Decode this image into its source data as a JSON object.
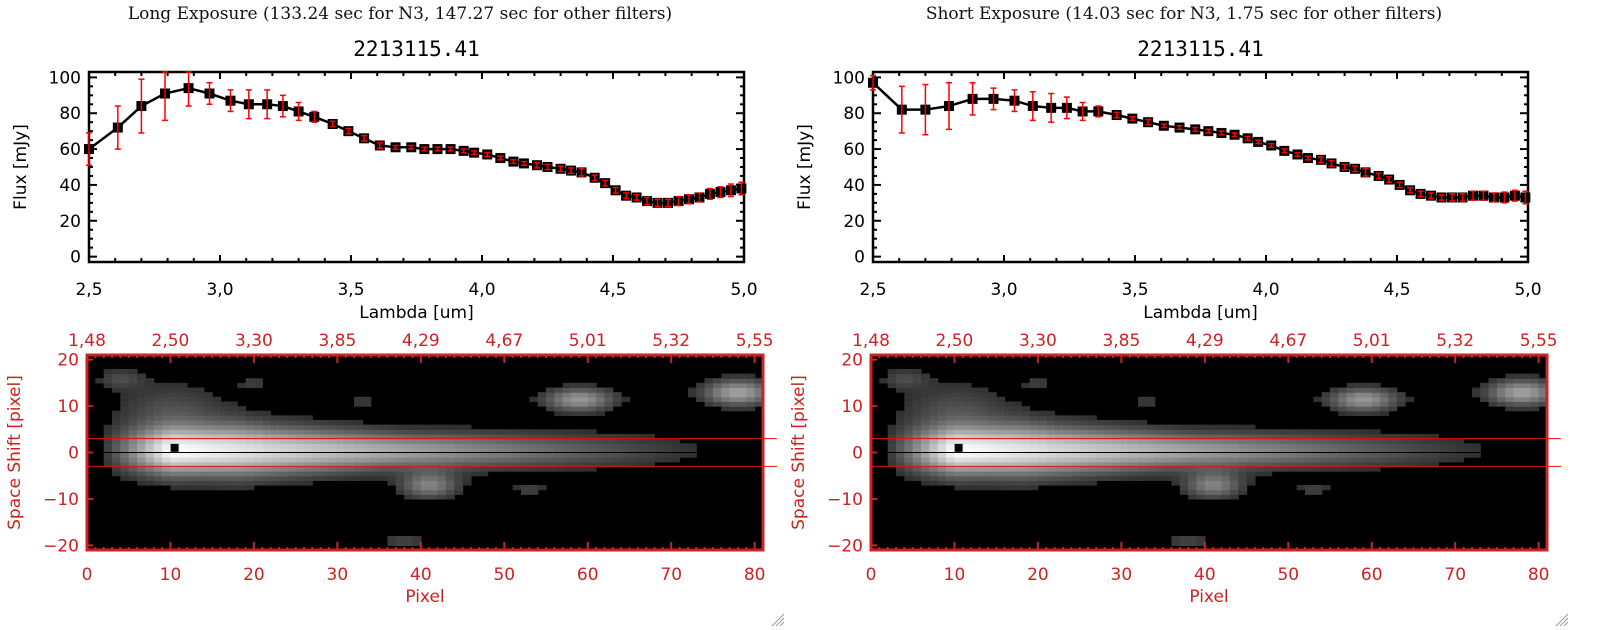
{
  "panels": [
    {
      "exposure_title": "Long Exposure (133.24 sec for N3, 147.27 sec for other filters)",
      "object_id": "2213115.41"
    },
    {
      "exposure_title": "Short Exposure (14.03 sec for N3, 1.75 sec for other filters)",
      "object_id": "2213115.41"
    }
  ],
  "colors": {
    "axis": "#000000",
    "errorbar": "#ff0000",
    "image_axis": "#cc2222",
    "marker": "#000000"
  },
  "chart_data": [
    {
      "type": "line",
      "title": "2213115.41",
      "xlabel": "Lambda [um]",
      "ylabel": "Flux [mJy]",
      "xlim": [
        2.5,
        5.0
      ],
      "ylim": [
        -3,
        103
      ],
      "xticks": [
        "2.5",
        "3.0",
        "3.5",
        "4.0",
        "4.5",
        "5.0"
      ],
      "yticks": [
        "0",
        "20",
        "40",
        "60",
        "80",
        "100"
      ],
      "series": [
        {
          "name": "Long Exposure",
          "x": [
            2.5,
            2.61,
            2.7,
            2.79,
            2.88,
            2.96,
            3.04,
            3.11,
            3.18,
            3.24,
            3.3,
            3.36,
            3.43,
            3.49,
            3.55,
            3.61,
            3.67,
            3.73,
            3.78,
            3.83,
            3.88,
            3.93,
            3.97,
            4.02,
            4.07,
            4.12,
            4.16,
            4.21,
            4.25,
            4.3,
            4.34,
            4.38,
            4.43,
            4.47,
            4.51,
            4.55,
            4.59,
            4.63,
            4.67,
            4.71,
            4.75,
            4.79,
            4.83,
            4.87,
            4.91,
            4.95,
            4.99
          ],
          "y": [
            60,
            72,
            84,
            91,
            94,
            91,
            87,
            85,
            85,
            84,
            81,
            78,
            74,
            70,
            66,
            62,
            61,
            61,
            60,
            60,
            60,
            59,
            58,
            57,
            55,
            53,
            52,
            51,
            50,
            49,
            48,
            47,
            44,
            41,
            37,
            34,
            33,
            31,
            30,
            30,
            31,
            32,
            33,
            35,
            36,
            37,
            38
          ],
          "yerr": [
            9,
            12,
            15,
            15,
            10,
            6,
            6,
            8,
            8,
            6,
            5,
            3,
            1.5,
            1.5,
            1.5,
            1.5,
            1,
            1,
            1,
            1,
            1,
            1,
            1,
            1,
            1,
            1,
            1,
            1.5,
            1.5,
            1.5,
            1.5,
            2,
            1.5,
            1.5,
            1.5,
            1.5,
            1.5,
            2,
            2,
            2,
            2.5,
            2.5,
            2.5,
            3,
            3,
            3.5,
            3.5
          ]
        }
      ]
    },
    {
      "type": "line",
      "title": "2213115.41",
      "xlabel": "Lambda [um]",
      "ylabel": "Flux [mJy]",
      "xlim": [
        2.5,
        5.0
      ],
      "ylim": [
        -3,
        103
      ],
      "xticks": [
        "2.5",
        "3.0",
        "3.5",
        "4.0",
        "4.5",
        "5.0"
      ],
      "yticks": [
        "0",
        "20",
        "40",
        "60",
        "80",
        "100"
      ],
      "series": [
        {
          "name": "Short Exposure",
          "x": [
            2.5,
            2.61,
            2.7,
            2.79,
            2.88,
            2.96,
            3.04,
            3.11,
            3.18,
            3.24,
            3.3,
            3.36,
            3.43,
            3.49,
            3.55,
            3.61,
            3.67,
            3.73,
            3.78,
            3.83,
            3.88,
            3.93,
            3.97,
            4.02,
            4.07,
            4.12,
            4.16,
            4.21,
            4.25,
            4.3,
            4.34,
            4.38,
            4.43,
            4.47,
            4.51,
            4.55,
            4.59,
            4.63,
            4.67,
            4.71,
            4.75,
            4.79,
            4.83,
            4.87,
            4.91,
            4.95,
            4.99
          ],
          "y": [
            97,
            82,
            82,
            84,
            88,
            88,
            87,
            84,
            83,
            83,
            81,
            81,
            79,
            77,
            75,
            73,
            72,
            71,
            70,
            69,
            68,
            66,
            64,
            62,
            59,
            57,
            55,
            54,
            52,
            50,
            49,
            47,
            45,
            43,
            40,
            37,
            35,
            34,
            33,
            33,
            33,
            34,
            34,
            33,
            33,
            34,
            33
          ],
          "yerr": [
            4,
            13,
            14,
            13,
            9,
            6,
            6,
            8,
            8,
            6,
            5,
            3,
            1.5,
            1,
            1.5,
            1,
            1,
            1,
            1,
            1,
            1,
            1,
            1,
            1,
            1,
            1,
            1,
            1.5,
            1.5,
            1.5,
            1.5,
            2,
            1.5,
            1.5,
            1.5,
            1.5,
            1.5,
            1.5,
            1.5,
            2,
            2,
            2.5,
            2.5,
            2.5,
            3,
            3,
            3.5
          ]
        }
      ]
    },
    {
      "type": "heatmap",
      "title": "",
      "xlabel": "Pixel",
      "ylabel": "Space Shift [pixel]",
      "xlim": [
        0,
        81
      ],
      "ylim": [
        -21,
        21
      ],
      "xticks": [
        "0",
        "10",
        "20",
        "30",
        "40",
        "50",
        "60",
        "70",
        "80"
      ],
      "yticks": [
        "-20",
        "-10",
        "0",
        "10",
        "20"
      ],
      "top_xticks": [
        "1.48",
        "2.50",
        "3.30",
        "3.85",
        "4.29",
        "4.67",
        "5.01",
        "5.32",
        "5.55"
      ],
      "aperture_lines": [
        3,
        -3
      ],
      "center_line": 0,
      "peak": {
        "x": 10.5,
        "y": 1
      }
    },
    {
      "type": "heatmap",
      "title": "",
      "xlabel": "Pixel",
      "ylabel": "Space Shift [pixel]",
      "xlim": [
        0,
        81
      ],
      "ylim": [
        -21,
        21
      ],
      "xticks": [
        "0",
        "10",
        "20",
        "30",
        "40",
        "50",
        "60",
        "70",
        "80"
      ],
      "yticks": [
        "-20",
        "-10",
        "0",
        "10",
        "20"
      ],
      "top_xticks": [
        "1.48",
        "2.50",
        "3.30",
        "3.85",
        "4.29",
        "4.67",
        "5.01",
        "5.32",
        "5.55"
      ],
      "aperture_lines": [
        3,
        -3
      ],
      "center_line": 0,
      "peak": {
        "x": 10.5,
        "y": 1
      }
    }
  ]
}
